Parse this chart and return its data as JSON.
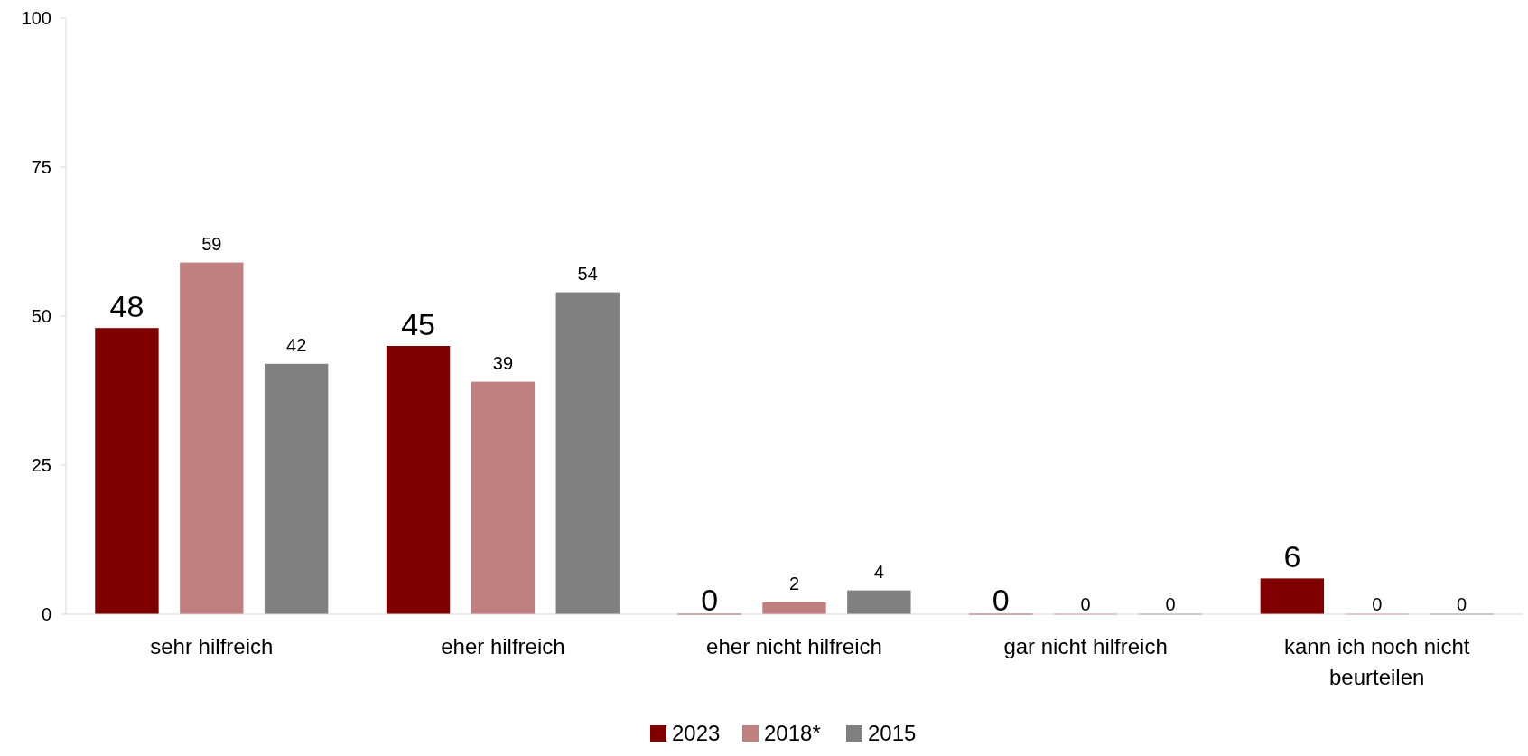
{
  "chart_data": {
    "type": "bar",
    "categories": [
      "sehr hilfreich",
      "eher hilfreich",
      "eher nicht hilfreich",
      "gar nicht hilfreich",
      "kann ich noch nicht beurteilen"
    ],
    "series": [
      {
        "name": "2023",
        "color": "#800000",
        "values": [
          48,
          45,
          0,
          0,
          6
        ]
      },
      {
        "name": "2018*",
        "color": "#c08080",
        "values": [
          59,
          39,
          2,
          0,
          0
        ]
      },
      {
        "name": "2015",
        "color": "#808080",
        "values": [
          42,
          54,
          4,
          0,
          0
        ]
      }
    ],
    "ylim": [
      0,
      100
    ],
    "yticks": [
      0,
      25,
      50,
      75,
      100
    ],
    "data_labels": true,
    "legend": "bottom",
    "grid": false
  }
}
